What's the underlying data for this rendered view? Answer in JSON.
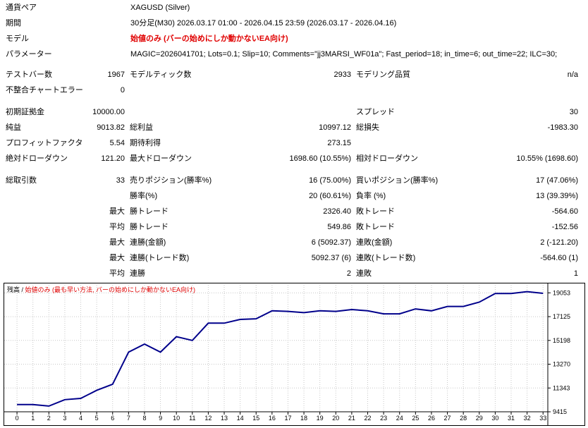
{
  "header": {
    "symbol_label": "通貨ペア",
    "symbol_value": "XAGUSD (Silver)",
    "period_label": "期間",
    "period_value": "30分足(M30) 2026.03.17 01:00 - 2026.04.15 23:59 (2026.03.17 - 2026.04.16)",
    "model_label": "モデル",
    "model_value": "始値のみ (バーの始めにしか動かないEA向け)",
    "params_label": "パラメーター",
    "params_value": "MAGIC=2026041701; Lots=0.1; Slip=10; Comments=\"jj3MARSI_WF01a\"; Fast_period=18; in_time=6; out_time=22; ILC=30;"
  },
  "stats": {
    "test_bars_label": "テストバー数",
    "test_bars_value": "1967",
    "model_ticks_label": "モデルティック数",
    "model_ticks_value": "2933",
    "model_quality_label": "モデリング品質",
    "model_quality_value": "n/a",
    "mismatch_label": "不整合チャートエラー",
    "mismatch_value": "0",
    "initial_deposit_label": "初期証拠金",
    "initial_deposit_value": "10000.00",
    "spread_label": "スプレッド",
    "spread_value": "30",
    "net_profit_label": "純益",
    "net_profit_value": "9013.82",
    "gross_profit_label": "総利益",
    "gross_profit_value": "10997.12",
    "gross_loss_label": "総損失",
    "gross_loss_value": "-1983.30",
    "profit_factor_label": "プロフィットファクタ",
    "profit_factor_value": "5.54",
    "expected_payoff_label": "期待利得",
    "expected_payoff_value": "273.15",
    "abs_drawdown_label": "絶対ドローダウン",
    "abs_drawdown_value": "121.20",
    "max_drawdown_label": "最大ドローダウン",
    "max_drawdown_value": "1698.60 (10.55%)",
    "rel_drawdown_label": "相対ドローダウン",
    "rel_drawdown_value": "10.55% (1698.60)",
    "total_trades_label": "総取引数",
    "total_trades_value": "33",
    "short_positions_label": "売りポジション(勝率%)",
    "short_positions_value": "16 (75.00%)",
    "long_positions_label": "買いポジション(勝率%)",
    "long_positions_value": "17 (47.06%)",
    "win_rate_label": "勝率(%)",
    "win_rate_value": "20 (60.61%)",
    "loss_rate_label": "負率 (%)",
    "loss_rate_value": "13 (39.39%)",
    "largest_prefix": "最大",
    "largest_win_label": "勝トレード",
    "largest_win_value": "2326.40",
    "largest_loss_label": "敗トレード",
    "largest_loss_value": "-564.60",
    "average_prefix": "平均",
    "avg_win_label": "勝トレード",
    "avg_win_value": "549.86",
    "avg_loss_label": "敗トレード",
    "avg_loss_value": "-152.56",
    "max_prefix_1": "最大",
    "max_consec_wins_money_label": "連勝(金額)",
    "max_consec_wins_money_value": "6 (5092.37)",
    "max_consec_losses_money_label": "連敗(金額)",
    "max_consec_losses_money_value": "2 (-121.20)",
    "max_prefix_2": "最大",
    "max_consec_profit_label": "連勝(トレード数)",
    "max_consec_profit_value": "5092.37 (6)",
    "max_consec_loss_label": "連敗(トレード数)",
    "max_consec_loss_value": "-564.60 (1)",
    "avg_prefix_2": "平均",
    "avg_consec_wins_label": "連勝",
    "avg_consec_wins_value": "2",
    "avg_consec_losses_label": "連敗",
    "avg_consec_losses_value": "1"
  },
  "chart_data": {
    "type": "line",
    "title_black": "残高",
    "title_sep": " / ",
    "title_red": "始値のみ (最も早い方法, バーの始めにしか動かないEA向け)",
    "x": [
      0,
      1,
      2,
      3,
      4,
      5,
      6,
      7,
      8,
      9,
      10,
      11,
      12,
      13,
      14,
      15,
      16,
      17,
      18,
      19,
      20,
      21,
      22,
      23,
      24,
      25,
      26,
      27,
      28,
      29,
      30,
      31,
      32,
      33
    ],
    "series": [
      {
        "values": [
          10000,
          10000,
          9880,
          10400,
          10500,
          11150,
          11650,
          14250,
          14900,
          14250,
          15500,
          15200,
          16600,
          16600,
          16900,
          16950,
          17600,
          17550,
          17450,
          17600,
          17550,
          17700,
          17600,
          17350,
          17350,
          17750,
          17600,
          17950,
          17950,
          18300,
          19000,
          19000,
          19150,
          19013.82
        ]
      }
    ],
    "x_ticks": [
      0,
      1,
      2,
      3,
      4,
      5,
      6,
      7,
      8,
      9,
      10,
      11,
      12,
      13,
      14,
      15,
      16,
      17,
      18,
      19,
      20,
      21,
      22,
      23,
      24,
      25,
      26,
      27,
      28,
      29,
      30,
      31,
      32,
      33
    ],
    "x_range": [
      -0.8,
      33.3
    ],
    "y_ticks": [
      9415,
      11343,
      13270,
      15198,
      17125,
      19053
    ],
    "y_range": [
      9415,
      19700
    ],
    "line_color": "#00008b"
  }
}
